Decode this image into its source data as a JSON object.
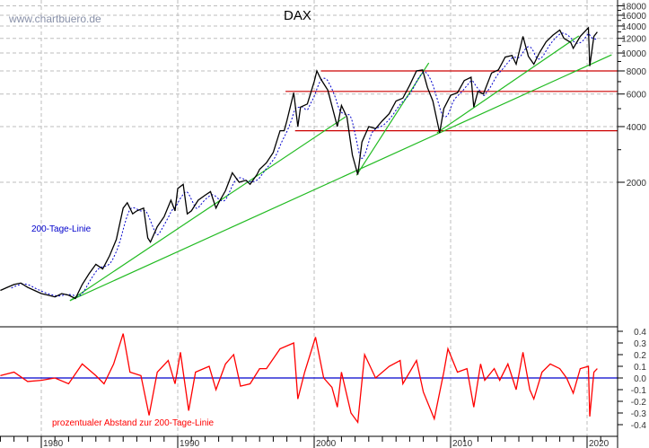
{
  "chart_data": [
    {
      "type": "line",
      "title": "DAX",
      "watermark": "www.chartbuero.de",
      "y_scale": "log",
      "ylim": [
        330,
        19400
      ],
      "xlim": [
        1977.0,
        2021.9
      ],
      "grid": true,
      "y_ticks": [
        2000,
        4000,
        6000,
        8000,
        10000,
        12000,
        14000,
        16000,
        18000
      ],
      "y_tick_labels": [
        "2000",
        "4000",
        "6000",
        "8000",
        "10000",
        "12000",
        "14000",
        "16000",
        "18000"
      ],
      "colors": {
        "price": "#000000",
        "ma": "#0000cc",
        "trendline": "#22bb22",
        "level": "#cc0000",
        "label_ma": "#0000cc"
      },
      "series": [
        {
          "key": "price",
          "points": [
            [
              1977.0,
              520
            ],
            [
              1977.5,
              540
            ],
            [
              1978.0,
              560
            ],
            [
              1978.5,
              570
            ],
            [
              1979.0,
              540
            ],
            [
              1979.5,
              520
            ],
            [
              1980.0,
              500
            ],
            [
              1980.5,
              490
            ],
            [
              1981.0,
              480
            ],
            [
              1981.5,
              500
            ],
            [
              1982.0,
              490
            ],
            [
              1982.5,
              470
            ],
            [
              1983.0,
              560
            ],
            [
              1983.5,
              640
            ],
            [
              1984.0,
              720
            ],
            [
              1984.5,
              680
            ],
            [
              1985.0,
              800
            ],
            [
              1985.5,
              980
            ],
            [
              1986.0,
              1450
            ],
            [
              1986.3,
              1550
            ],
            [
              1986.7,
              1350
            ],
            [
              1987.0,
              1400
            ],
            [
              1987.5,
              1450
            ],
            [
              1987.8,
              1000
            ],
            [
              1988.0,
              950
            ],
            [
              1988.5,
              1150
            ],
            [
              1989.0,
              1300
            ],
            [
              1989.5,
              1600
            ],
            [
              1989.8,
              1400
            ],
            [
              1990.0,
              1850
            ],
            [
              1990.4,
              1950
            ],
            [
              1990.7,
              1350
            ],
            [
              1991.0,
              1400
            ],
            [
              1991.5,
              1600
            ],
            [
              1992.0,
              1700
            ],
            [
              1992.4,
              1780
            ],
            [
              1992.8,
              1450
            ],
            [
              1993.0,
              1550
            ],
            [
              1993.5,
              1800
            ],
            [
              1994.0,
              2250
            ],
            [
              1994.5,
              2000
            ],
            [
              1995.0,
              2050
            ],
            [
              1995.3,
              1950
            ],
            [
              1995.8,
              2200
            ],
            [
              1996.0,
              2350
            ],
            [
              1996.5,
              2550
            ],
            [
              1997.0,
              2900
            ],
            [
              1997.5,
              3800
            ],
            [
              1997.8,
              3800
            ],
            [
              1998.0,
              4300
            ],
            [
              1998.5,
              6100
            ],
            [
              1998.8,
              4000
            ],
            [
              1999.0,
              5100
            ],
            [
              1999.5,
              5300
            ],
            [
              2000.0,
              7000
            ],
            [
              2000.2,
              8000
            ],
            [
              2000.5,
              7200
            ],
            [
              2001.0,
              6300
            ],
            [
              2001.7,
              4000
            ],
            [
              2002.0,
              5200
            ],
            [
              2002.4,
              4500
            ],
            [
              2002.8,
              2800
            ],
            [
              2003.2,
              2200
            ],
            [
              2003.5,
              3300
            ],
            [
              2004.0,
              4000
            ],
            [
              2004.5,
              3900
            ],
            [
              2005.0,
              4300
            ],
            [
              2005.5,
              4700
            ],
            [
              2006.0,
              5500
            ],
            [
              2006.5,
              5700
            ],
            [
              2007.0,
              6700
            ],
            [
              2007.5,
              8000
            ],
            [
              2007.95,
              8100
            ],
            [
              2008.3,
              6500
            ],
            [
              2008.7,
              5500
            ],
            [
              2009.2,
              3700
            ],
            [
              2009.5,
              5000
            ],
            [
              2010.0,
              5900
            ],
            [
              2010.5,
              6100
            ],
            [
              2011.0,
              7100
            ],
            [
              2011.5,
              7400
            ],
            [
              2011.7,
              5100
            ],
            [
              2012.0,
              6200
            ],
            [
              2012.4,
              6000
            ],
            [
              2013.0,
              7800
            ],
            [
              2013.5,
              8100
            ],
            [
              2014.0,
              9500
            ],
            [
              2014.5,
              9700
            ],
            [
              2014.8,
              8700
            ],
            [
              2015.3,
              12300
            ],
            [
              2015.7,
              9600
            ],
            [
              2016.1,
              8700
            ],
            [
              2016.5,
              10000
            ],
            [
              2017.0,
              11500
            ],
            [
              2017.5,
              12500
            ],
            [
              2018.0,
              13300
            ],
            [
              2018.3,
              12000
            ],
            [
              2018.8,
              11400
            ],
            [
              2018.99,
              10600
            ],
            [
              2019.5,
              12300
            ],
            [
              2020.1,
              13700
            ],
            [
              2020.2,
              8500
            ],
            [
              2020.5,
              12300
            ],
            [
              2020.75,
              13000
            ]
          ]
        },
        {
          "key": "ma",
          "label": "200-Tage-Linie"
        }
      ],
      "trendlines": [
        {
          "from": [
            1982.1,
            458
          ],
          "to": [
            2021.8,
            9780
          ]
        },
        {
          "from": [
            1982.1,
            458
          ],
          "to": [
            2002.3,
            4520
          ]
        },
        {
          "from": [
            2003.1,
            2180
          ],
          "to": [
            2008.4,
            8840
          ]
        },
        {
          "from": [
            2009.0,
            3700
          ],
          "to": [
            2019.4,
            12380
          ]
        }
      ],
      "levels": [
        {
          "value": 8000,
          "from_year": 2000.5
        },
        {
          "value": 6200,
          "from_year": 1997.9
        },
        {
          "value": 3800,
          "from_year": 1998.6
        }
      ]
    },
    {
      "type": "line",
      "label": "prozentualer Abstand zur 200-Tage-Linie",
      "ylim": [
        -0.45,
        0.45
      ],
      "y_ticks": [
        0.4,
        0.3,
        0.2,
        0.1,
        0.0,
        -0.1,
        -0.2,
        -0.3,
        -0.4
      ],
      "y_tick_labels": [
        "0.4",
        "0.3",
        "0.2",
        "0.1",
        "0.0",
        "-0.1",
        "-0.2",
        "-0.3",
        "-0.4"
      ],
      "colors": {
        "line": "#ff0000",
        "zero": "#0000cc"
      },
      "points": [
        [
          1977,
          0.02
        ],
        [
          1978,
          0.05
        ],
        [
          1979,
          -0.03
        ],
        [
          1980,
          -0.02
        ],
        [
          1981,
          0.0
        ],
        [
          1982,
          -0.05
        ],
        [
          1983,
          0.12
        ],
        [
          1984,
          0.02
        ],
        [
          1984.6,
          -0.05
        ],
        [
          1985.3,
          0.12
        ],
        [
          1986.0,
          0.38
        ],
        [
          1986.5,
          0.05
        ],
        [
          1987.3,
          0.02
        ],
        [
          1987.9,
          -0.32
        ],
        [
          1988.5,
          0.05
        ],
        [
          1989.3,
          0.15
        ],
        [
          1989.8,
          -0.05
        ],
        [
          1990.2,
          0.22
        ],
        [
          1990.8,
          -0.28
        ],
        [
          1991.3,
          0.05
        ],
        [
          1992.3,
          0.1
        ],
        [
          1992.8,
          -0.1
        ],
        [
          1993.5,
          0.12
        ],
        [
          1994.1,
          0.2
        ],
        [
          1994.6,
          -0.07
        ],
        [
          1995.3,
          -0.05
        ],
        [
          1996.0,
          0.08
        ],
        [
          1996.5,
          0.08
        ],
        [
          1997.5,
          0.25
        ],
        [
          1998.5,
          0.3
        ],
        [
          1998.8,
          -0.18
        ],
        [
          1999.3,
          0.05
        ],
        [
          2000.1,
          0.35
        ],
        [
          2000.7,
          0.0
        ],
        [
          2001.3,
          -0.08
        ],
        [
          2001.7,
          -0.25
        ],
        [
          2002.0,
          0.05
        ],
        [
          2002.7,
          -0.3
        ],
        [
          2003.2,
          -0.38
        ],
        [
          2003.7,
          0.2
        ],
        [
          2004.5,
          0.0
        ],
        [
          2005.5,
          0.1
        ],
        [
          2006.3,
          0.15
        ],
        [
          2006.5,
          -0.05
        ],
        [
          2007.5,
          0.15
        ],
        [
          2008.0,
          -0.12
        ],
        [
          2008.8,
          -0.35
        ],
        [
          2009.5,
          0.05
        ],
        [
          2009.8,
          0.25
        ],
        [
          2010.5,
          0.05
        ],
        [
          2011.2,
          0.08
        ],
        [
          2011.7,
          -0.25
        ],
        [
          2012.2,
          0.12
        ],
        [
          2012.5,
          -0.02
        ],
        [
          2013.2,
          0.08
        ],
        [
          2013.6,
          -0.02
        ],
        [
          2014.2,
          0.12
        ],
        [
          2014.8,
          -0.1
        ],
        [
          2015.3,
          0.22
        ],
        [
          2015.8,
          -0.1
        ],
        [
          2016.1,
          -0.18
        ],
        [
          2016.7,
          0.05
        ],
        [
          2017.3,
          0.12
        ],
        [
          2018.0,
          0.08
        ],
        [
          2018.5,
          0.0
        ],
        [
          2018.99,
          -0.13
        ],
        [
          2019.5,
          0.08
        ],
        [
          2020.1,
          0.1
        ],
        [
          2020.2,
          -0.33
        ],
        [
          2020.5,
          0.05
        ],
        [
          2020.75,
          0.08
        ]
      ]
    }
  ],
  "x_axis": {
    "tick_years": [
      1980,
      1990,
      2000,
      2010,
      2020
    ],
    "tick_labels": [
      "1980",
      "1990",
      "2000",
      "2010",
      "2020"
    ]
  }
}
